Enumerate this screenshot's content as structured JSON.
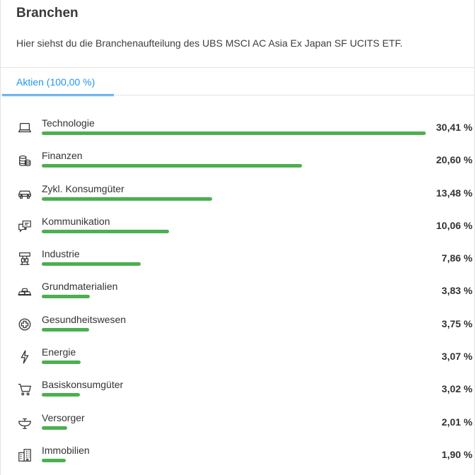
{
  "header": {
    "title": "Branchen",
    "description": "Hier siehst du die Branchenaufteilung des UBS MSCI AC Asia Ex Japan SF UCITS ETF."
  },
  "tabs": [
    {
      "label": "Aktien (100,00 %)",
      "active": true
    }
  ],
  "accent_color": "#2196f3",
  "bar_color": "#4caf50",
  "sectors": [
    {
      "label": "Technologie",
      "value": "30,41 %",
      "share": 30.41,
      "icon": "laptop-icon"
    },
    {
      "label": "Finanzen",
      "value": "20,60 %",
      "share": 20.6,
      "icon": "coins-icon"
    },
    {
      "label": "Zykl. Konsumgüter",
      "value": "13,48 %",
      "share": 13.48,
      "icon": "car-icon"
    },
    {
      "label": "Kommunikation",
      "value": "10,06 %",
      "share": 10.06,
      "icon": "chat-bubbles-icon"
    },
    {
      "label": "Industrie",
      "value": "7,86 %",
      "share": 7.86,
      "icon": "robot-arm-icon"
    },
    {
      "label": "Grundmaterialien",
      "value": "3,83 %",
      "share": 3.83,
      "icon": "gold-bars-icon"
    },
    {
      "label": "Gesundheitswesen",
      "value": "3,75 %",
      "share": 3.75,
      "icon": "medical-plus-icon"
    },
    {
      "label": "Energie",
      "value": "3,07 %",
      "share": 3.07,
      "icon": "lightning-icon"
    },
    {
      "label": "Basiskonsumgüter",
      "value": "3,02 %",
      "share": 3.02,
      "icon": "shopping-cart-icon"
    },
    {
      "label": "Versorger",
      "value": "2,01 %",
      "share": 2.01,
      "icon": "sink-faucet-icon"
    },
    {
      "label": "Immobilien",
      "value": "1,90 %",
      "share": 1.9,
      "icon": "building-icon"
    }
  ]
}
